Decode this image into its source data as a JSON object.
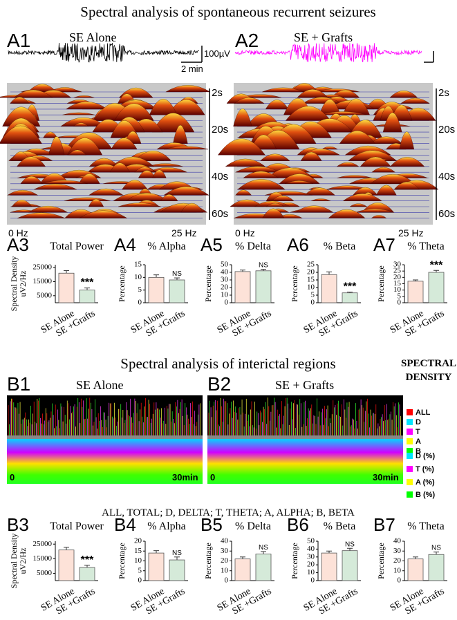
{
  "title": "Spectral analysis of spontaneous recurrent seizures",
  "panel_a1": {
    "label": "A1",
    "caption": "SE Alone"
  },
  "panel_a2": {
    "label": "A2",
    "caption": "SE + Grafts"
  },
  "scale_bar": {
    "amplitude": "100µV",
    "time": "2 min"
  },
  "spectrograms": [
    {
      "time_labels": [
        "2s",
        "20s",
        "40s",
        "60s"
      ],
      "freq_labels": [
        "0 Hz",
        "25 Hz"
      ]
    },
    {
      "time_labels": [
        "2s",
        "20s",
        "40s",
        "60s"
      ],
      "freq_labels": [
        "0 Hz",
        "25 Hz"
      ]
    }
  ],
  "subtitle": "Spectral analysis of interictal regions",
  "panel_b1": {
    "label": "B1",
    "caption": "SE Alone",
    "time_labels": [
      "0",
      "30min"
    ]
  },
  "panel_b2": {
    "label": "B2",
    "caption": "SE + Grafts",
    "time_labels": [
      "0",
      "30min"
    ]
  },
  "legend": {
    "title_lines": [
      "SPECTRAL",
      "DENSITY"
    ],
    "items": [
      {
        "label": "ALL",
        "color": "#ff0000"
      },
      {
        "label": "D",
        "color": "#00e5ff"
      },
      {
        "label": "T",
        "color": "#ff00ff"
      },
      {
        "label": "A",
        "color": "#ffff00"
      },
      {
        "label": "B",
        "color": "#00ff00"
      },
      {
        "label": "D (%)",
        "color": "#00e5ff"
      },
      {
        "label": "T (%)",
        "color": "#ff00ff"
      },
      {
        "label": "A (%)",
        "color": "#ffff00"
      },
      {
        "label": "B (%)",
        "color": "#00ff00"
      }
    ]
  },
  "abbreviations": "ALL, TOTAL; D, DELTA; T, THETA; A, ALPHA; B, BETA",
  "chart_data": [
    {
      "type": "bar",
      "panel": "A3",
      "title": "Total Power",
      "ylabel": [
        "Spectral Density",
        "uV2/Hz"
      ],
      "categories": [
        "SE Alone",
        "SE +Grafts"
      ],
      "values": [
        21000,
        9000
      ],
      "errors": [
        1800,
        1500
      ],
      "colors": [
        "#fde2d8",
        "#d5ead9"
      ],
      "annotation": "***",
      "ylim": [
        0,
        27000
      ],
      "yticks": [
        5000,
        15000,
        25000
      ]
    },
    {
      "type": "bar",
      "panel": "A4",
      "title": "% Alpha",
      "ylabel": "Percentage",
      "categories": [
        "SE Alone",
        "SE +Grafts"
      ],
      "values": [
        10,
        9
      ],
      "errors": [
        1,
        0.8
      ],
      "colors": [
        "#fde2d8",
        "#d5ead9"
      ],
      "annotation": "NS",
      "ylim": [
        0,
        15
      ],
      "yticks": [
        0,
        5,
        10,
        15
      ]
    },
    {
      "type": "bar",
      "panel": "A5",
      "title": "% Delta",
      "ylabel": "Percentage",
      "categories": [
        "SE Alone",
        "SE +Grafts"
      ],
      "values": [
        41,
        42
      ],
      "errors": [
        2,
        2
      ],
      "colors": [
        "#fde2d8",
        "#d5ead9"
      ],
      "annotation": "NS",
      "ylim": [
        0,
        50
      ],
      "yticks": [
        0,
        10,
        20,
        30,
        40,
        50
      ]
    },
    {
      "type": "bar",
      "panel": "A6",
      "title": "% Beta",
      "ylabel": "Percentage",
      "categories": [
        "SE Alone",
        "SE +Grafts"
      ],
      "values": [
        18.5,
        6.5
      ],
      "errors": [
        1.8,
        0.5
      ],
      "colors": [
        "#fde2d8",
        "#d5ead9"
      ],
      "annotation": "***",
      "ylim": [
        0,
        25
      ],
      "yticks": [
        0,
        5,
        10,
        15,
        20,
        25
      ]
    },
    {
      "type": "bar",
      "panel": "A7",
      "title": "% Theta",
      "ylabel": "Percentage",
      "categories": [
        "SE Alone",
        "SE +Grafts"
      ],
      "values": [
        17,
        24
      ],
      "errors": [
        1,
        1.5
      ],
      "colors": [
        "#fde2d8",
        "#d5ead9"
      ],
      "annotation": "***",
      "ylim": [
        0,
        30
      ],
      "yticks": [
        0,
        5,
        10,
        15,
        20,
        25,
        30
      ]
    },
    {
      "type": "bar",
      "panel": "B3",
      "title": "Total Power",
      "ylabel": [
        "Spectral Density",
        "uV2/Hz"
      ],
      "categories": [
        "SE Alone",
        "SE +Grafts"
      ],
      "values": [
        21000,
        9000
      ],
      "errors": [
        1800,
        1500
      ],
      "colors": [
        "#fde2d8",
        "#d5ead9"
      ],
      "annotation": "***",
      "ylim": [
        0,
        27000
      ],
      "yticks": [
        5000,
        15000,
        25000
      ]
    },
    {
      "type": "bar",
      "panel": "B4",
      "title": "% Alpha",
      "ylabel": "Percentage",
      "categories": [
        "SE Alone",
        "SE +Grafts"
      ],
      "values": [
        14,
        10.5
      ],
      "errors": [
        1.2,
        1.5
      ],
      "colors": [
        "#fde2d8",
        "#d5ead9"
      ],
      "annotation": "NS",
      "ylim": [
        0,
        20
      ],
      "yticks": [
        0,
        5,
        10,
        15,
        20
      ]
    },
    {
      "type": "bar",
      "panel": "B5",
      "title": "% Delta",
      "ylabel": "Percentage",
      "categories": [
        "SE Alone",
        "SE +Grafts"
      ],
      "values": [
        22,
        27
      ],
      "errors": [
        2,
        2.5
      ],
      "colors": [
        "#fde2d8",
        "#d5ead9"
      ],
      "annotation": "NS",
      "ylim": [
        0,
        40
      ],
      "yticks": [
        0,
        10,
        20,
        30,
        40
      ]
    },
    {
      "type": "bar",
      "panel": "B6",
      "title": "% Beta",
      "ylabel": "Percentage",
      "categories": [
        "SE Alone",
        "SE +Grafts"
      ],
      "values": [
        35,
        38
      ],
      "errors": [
        2.5,
        3
      ],
      "colors": [
        "#fde2d8",
        "#d5ead9"
      ],
      "annotation": "NS",
      "ylim": [
        0,
        50
      ],
      "yticks": [
        0,
        10,
        20,
        30,
        40,
        50
      ]
    },
    {
      "type": "bar",
      "panel": "B7",
      "title": "% Theta",
      "ylabel": "Percentage",
      "categories": [
        "SE Alone",
        "SE +Grafts"
      ],
      "values": [
        22,
        26.5
      ],
      "errors": [
        2,
        2.5
      ],
      "colors": [
        "#fde2d8",
        "#d5ead9"
      ],
      "annotation": "NS",
      "ylim": [
        0,
        40
      ],
      "yticks": [
        0,
        10,
        20,
        30,
        40
      ]
    }
  ]
}
